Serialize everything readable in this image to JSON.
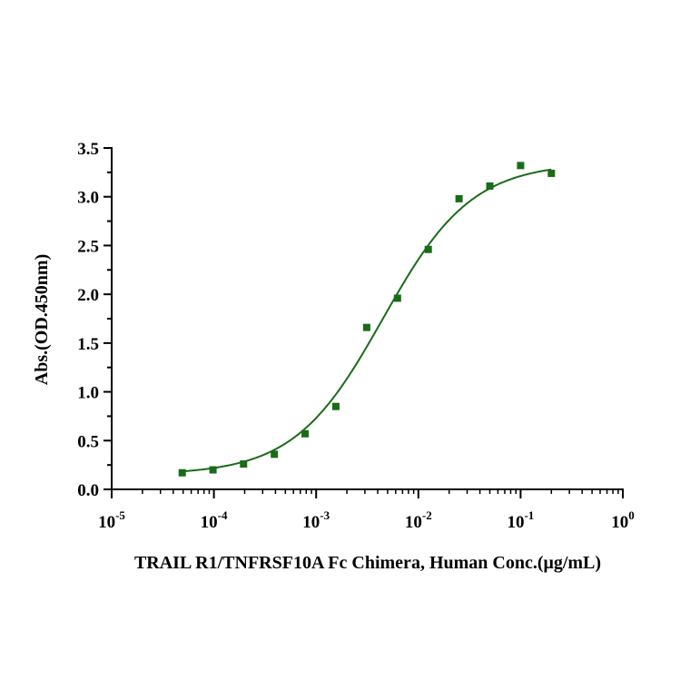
{
  "chart_data": {
    "type": "scatter",
    "title": "",
    "xlabel": "TRAIL R1/TNFRSF10A Fc Chimera, Human Conc.(μg/mL)",
    "ylabel": "Abs.(OD.450nm)",
    "x_scale": "log",
    "xlim": [
      1e-05,
      1
    ],
    "ylim": [
      0,
      3.5
    ],
    "x_ticks": [
      {
        "value": 1e-05,
        "base": "10",
        "exp": "-5"
      },
      {
        "value": 0.0001,
        "base": "10",
        "exp": "-4"
      },
      {
        "value": 0.001,
        "base": "10",
        "exp": "-3"
      },
      {
        "value": 0.01,
        "base": "10",
        "exp": "-2"
      },
      {
        "value": 0.1,
        "base": "10",
        "exp": "-1"
      },
      {
        "value": 1,
        "base": "10",
        "exp": "0"
      }
    ],
    "y_ticks": [
      {
        "value": 0,
        "label": "0.0"
      },
      {
        "value": 0.5,
        "label": "0.5"
      },
      {
        "value": 1,
        "label": "1.0"
      },
      {
        "value": 1.5,
        "label": "1.5"
      },
      {
        "value": 2,
        "label": "2.0"
      },
      {
        "value": 2.5,
        "label": "2.5"
      },
      {
        "value": 3,
        "label": "3.0"
      },
      {
        "value": 3.5,
        "label": "3.5"
      }
    ],
    "grid": false,
    "legend": "none",
    "color": "#1a6b1a",
    "series": [
      {
        "x": [
          4.9e-05,
          9.8e-05,
          0.000195,
          0.00039,
          0.00078,
          0.00156,
          0.003125,
          0.00625,
          0.0125,
          0.025,
          0.05,
          0.1,
          0.2
        ],
        "y": [
          0.17,
          0.2,
          0.26,
          0.36,
          0.57,
          0.85,
          1.66,
          1.96,
          2.46,
          2.98,
          3.11,
          3.32,
          3.24
        ]
      }
    ],
    "fit": {
      "model": "4PL",
      "bottom": 0.15,
      "top": 3.35,
      "ec50": 0.0045,
      "hill": 1.0
    }
  }
}
